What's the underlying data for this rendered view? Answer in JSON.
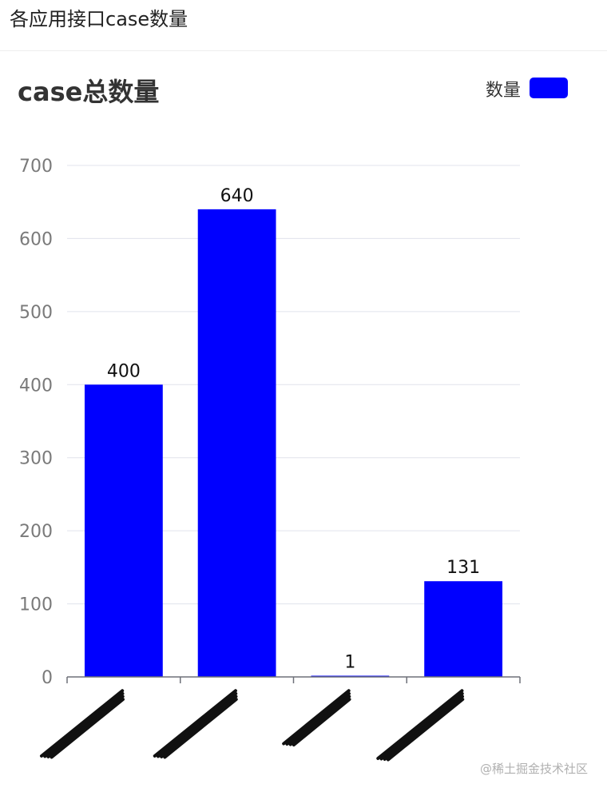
{
  "page": {
    "title": "各应用接口case数量"
  },
  "watermark": "@稀土掘金技术社区",
  "chart_data": {
    "type": "bar",
    "title": "case总数量",
    "categories": [
      "",
      "",
      "",
      ""
    ],
    "series": [
      {
        "name": "数量",
        "values": [
          400,
          640,
          1,
          131
        ],
        "color": "#0000ff"
      }
    ],
    "ylim": [
      0,
      700
    ],
    "yticks": [
      0,
      100,
      200,
      300,
      400,
      500,
      600,
      700
    ],
    "grid": true,
    "legend_position": "top-right",
    "data_labels": true,
    "x_labels_obscured": true
  }
}
